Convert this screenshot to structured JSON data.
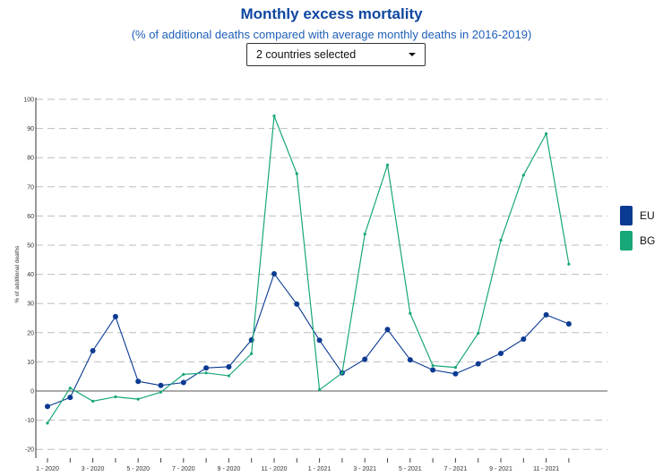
{
  "header": {
    "title": "Monthly excess mortality",
    "subtitle": "(% of additional deaths compared with average monthly deaths in 2016-2019)"
  },
  "selector": {
    "value": "2 countries selected"
  },
  "chart_data": {
    "type": "line",
    "title": "Monthly excess mortality",
    "subtitle": "(% of additional deaths compared with average monthly deaths in 2016-2019)",
    "xlabel": "",
    "ylabel": "% of additional deaths",
    "ylim": [
      -20,
      100
    ],
    "yticks": [
      -20,
      -10,
      0,
      10,
      20,
      30,
      40,
      50,
      60,
      70,
      80,
      90,
      100
    ],
    "grid": true,
    "legend_position": "right",
    "categories": [
      "1 - 2020",
      "2 - 2020",
      "3 - 2020",
      "4 - 2020",
      "5 - 2020",
      "6 - 2020",
      "7 - 2020",
      "8 - 2020",
      "9 - 2020",
      "10 - 2020",
      "11 - 2020",
      "12 - 2020",
      "1 - 2021",
      "2 - 2021",
      "3 - 2021",
      "4 - 2021",
      "5 - 2021",
      "6 - 2021",
      "7 - 2021",
      "8 - 2021",
      "9 - 2021",
      "10 - 2021",
      "11 - 2021",
      "12 - 2021"
    ],
    "x_tick_labels": [
      "1 - 2020",
      "3 - 2020",
      "5 - 2020",
      "7 - 2020",
      "9 - 2020",
      "11 - 2020",
      "1 - 2021",
      "3 - 2021",
      "5 - 2021",
      "7 - 2021",
      "9 - 2021",
      "11 - 2021"
    ],
    "series": [
      {
        "name": "EU",
        "color": "#0a3a92",
        "values": [
          -5.3,
          -2.2,
          13.8,
          25.5,
          3.3,
          1.9,
          2.9,
          7.9,
          8.3,
          17.5,
          40.2,
          29.8,
          17.4,
          6.2,
          10.9,
          21.1,
          10.7,
          7.2,
          5.9,
          9.3,
          12.9,
          17.8,
          26.1,
          23.0
        ]
      },
      {
        "name": "BG",
        "color": "#18a778",
        "values": [
          -11.0,
          1.0,
          -3.5,
          -2.0,
          -2.8,
          -0.4,
          5.7,
          6.2,
          5.2,
          12.8,
          94.3,
          74.5,
          0.4,
          6.2,
          53.8,
          77.5,
          26.6,
          8.7,
          8.1,
          19.8,
          51.7,
          74.0,
          88.2,
          43.5
        ]
      }
    ]
  }
}
